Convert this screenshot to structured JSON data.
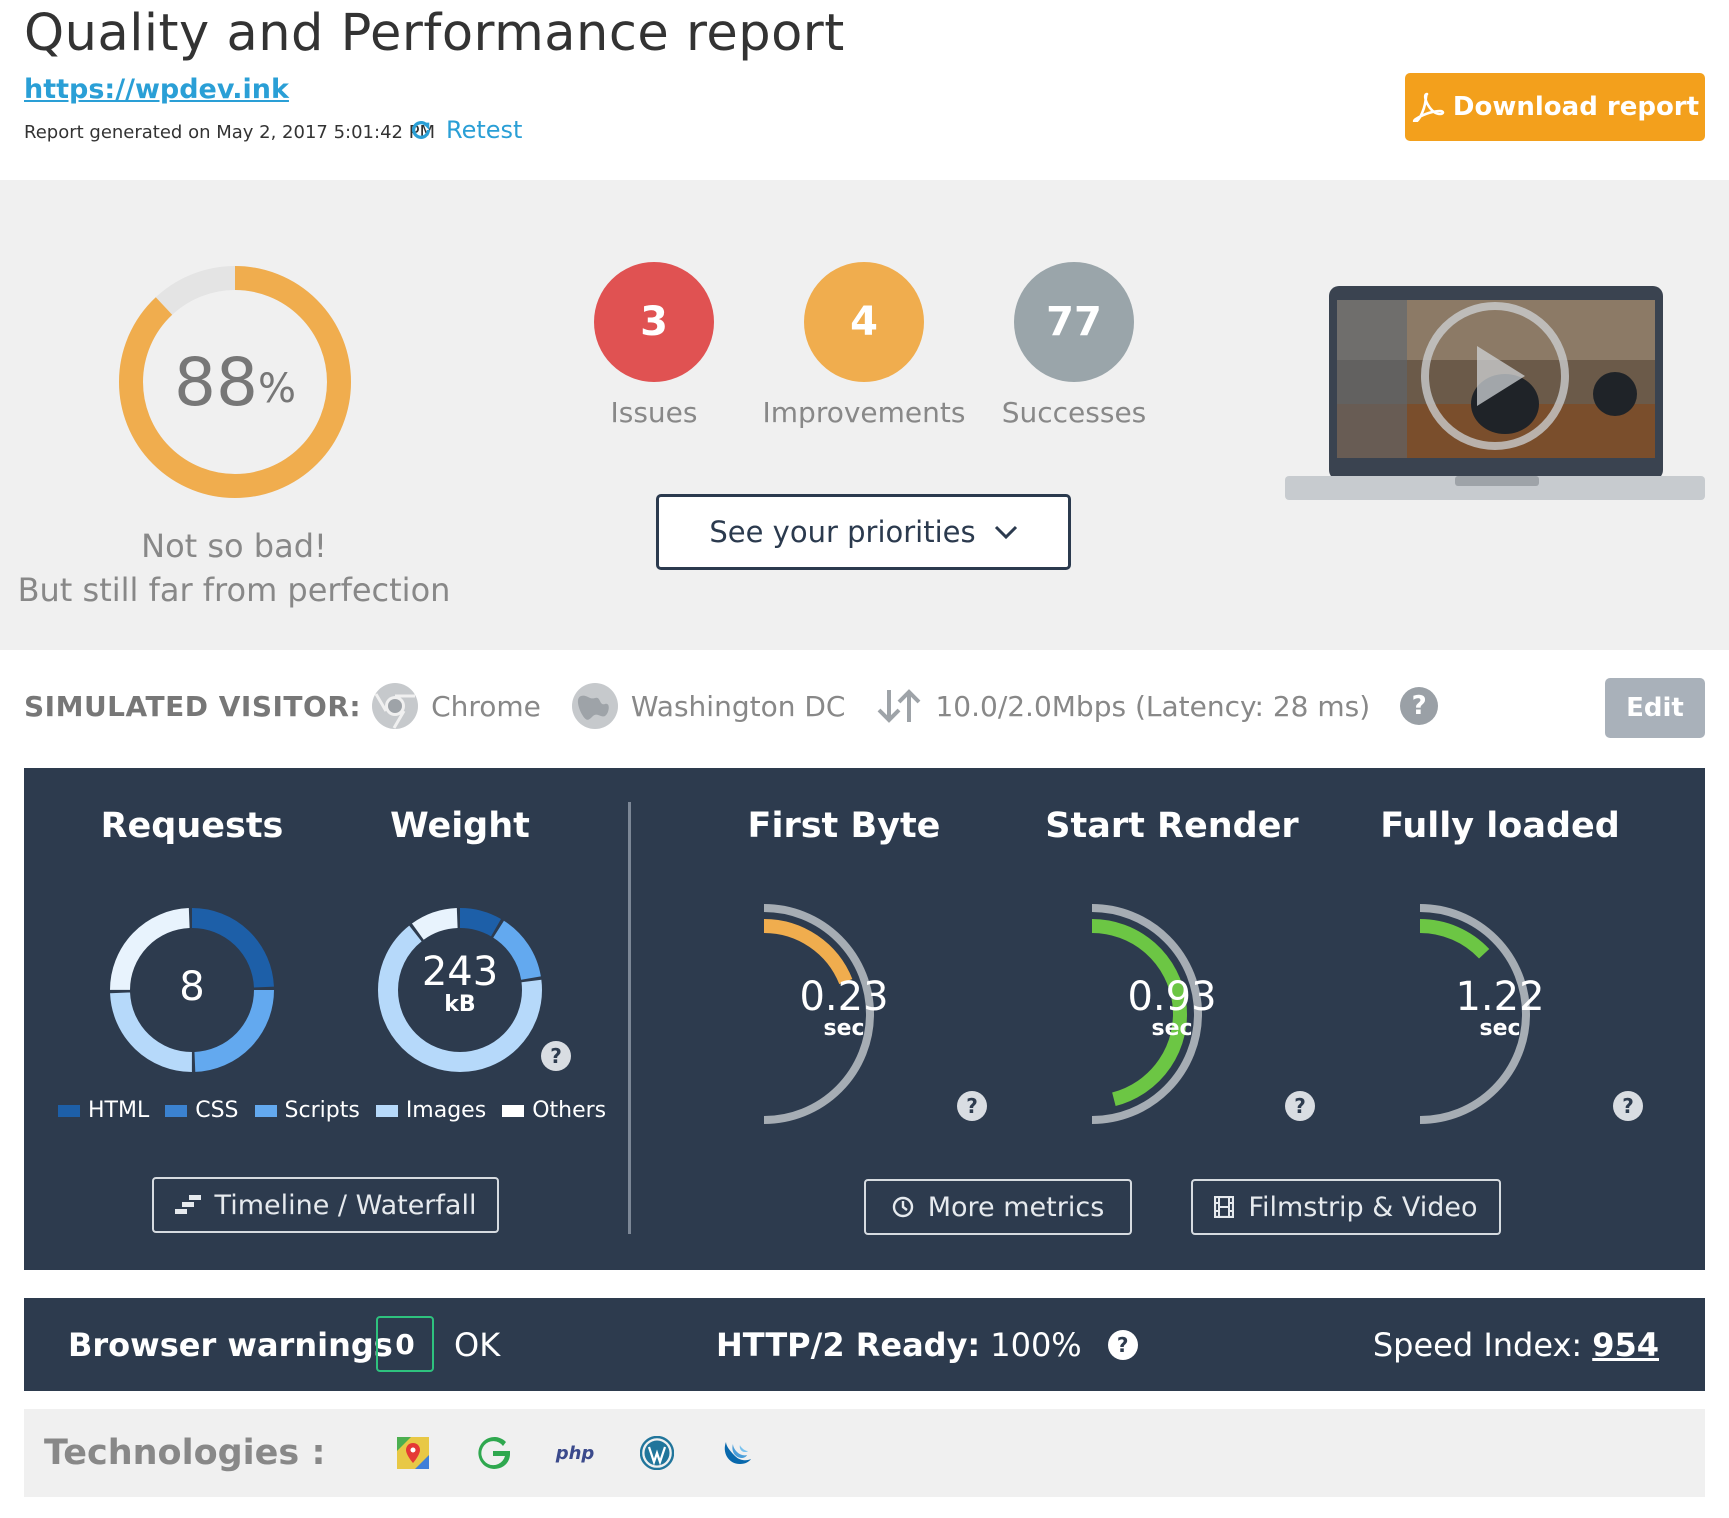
{
  "header": {
    "title": "Quality and Performance report",
    "url": "https://wpdev.ink",
    "generated": "Report generated on May 2, 2017 5:01:42 PM",
    "retest_label": "Retest",
    "download_label": "Download report"
  },
  "summary": {
    "score_value": "88",
    "score_unit": "%",
    "score_fraction": 0.88,
    "verdict_line1": "Not so bad!",
    "verdict_line2": "But still far from perfection",
    "counters": [
      {
        "value": "3",
        "label": "Issues",
        "color": "#e05252"
      },
      {
        "value": "4",
        "label": "Improvements",
        "color": "#f0ad4e"
      },
      {
        "value": "77",
        "label": "Successes",
        "color": "#9aa5aa"
      }
    ],
    "priorities_label": "See your priorities",
    "accent_color": "#f0ad4e"
  },
  "visitor": {
    "label": "SIMULATED VISITOR:",
    "browser": "Chrome",
    "location": "Washington DC",
    "connection": "10.0/2.0Mbps (Latency: 28 ms)",
    "help": "?",
    "edit_label": "Edit"
  },
  "metrics": {
    "requests": {
      "title": "Requests",
      "value": "8",
      "segments": [
        {
          "name": "HTML",
          "fraction": 0.25,
          "color": "#1d5fa8"
        },
        {
          "name": "Scripts",
          "fraction": 0.25,
          "color": "#63a9ef"
        },
        {
          "name": "Images",
          "fraction": 0.25,
          "color": "#b6d9fa"
        },
        {
          "name": "Others",
          "fraction": 0.25,
          "color": "#e8f3fd"
        }
      ]
    },
    "weight": {
      "title": "Weight",
      "value": "243",
      "unit": "kB",
      "help": "?",
      "segments": [
        {
          "name": "HTML",
          "fraction": 0.09,
          "color": "#1d5fa8"
        },
        {
          "name": "Scripts",
          "fraction": 0.14,
          "color": "#63a9ef"
        },
        {
          "name": "Images",
          "fraction": 0.67,
          "color": "#b6d9fa"
        },
        {
          "name": "Others",
          "fraction": 0.1,
          "color": "#e8f3fd"
        }
      ]
    },
    "legend": [
      {
        "name": "HTML",
        "color": "#1d5fa8"
      },
      {
        "name": "CSS",
        "color": "#3b82d0"
      },
      {
        "name": "Scripts",
        "color": "#63a9ef"
      },
      {
        "name": "Images",
        "color": "#b6d9fa"
      },
      {
        "name": "Others",
        "color": "#ffffff"
      }
    ],
    "timeline_label": "Timeline / Waterfall",
    "gauges": [
      {
        "title": "First Byte",
        "value": "0.23",
        "unit": "sec",
        "fraction": 0.38,
        "color": "#f0ad4e",
        "help": "?"
      },
      {
        "title": "Start Render",
        "value": "0.93",
        "unit": "sec",
        "fraction": 0.92,
        "color": "#6cc644",
        "help": "?"
      },
      {
        "title": "Fully loaded",
        "value": "1.22",
        "unit": "sec",
        "fraction": 0.26,
        "color": "#6cc644",
        "help": "?"
      }
    ],
    "more_metrics_label": "More metrics",
    "filmstrip_label": "Filmstrip & Video"
  },
  "warnings": {
    "label": "Browser warnings",
    "count": "0",
    "status": "OK",
    "http2_label": "HTTP/2 Ready:",
    "http2_value": "100%",
    "help": "?",
    "speed_label": "Speed Index:",
    "speed_value": "954"
  },
  "technologies": {
    "label": "Technologies :",
    "icons": [
      "google-maps-icon",
      "gtmetrix-g-icon",
      "php-icon",
      "wordpress-icon",
      "jquery-icon"
    ],
    "php_text": "php"
  }
}
